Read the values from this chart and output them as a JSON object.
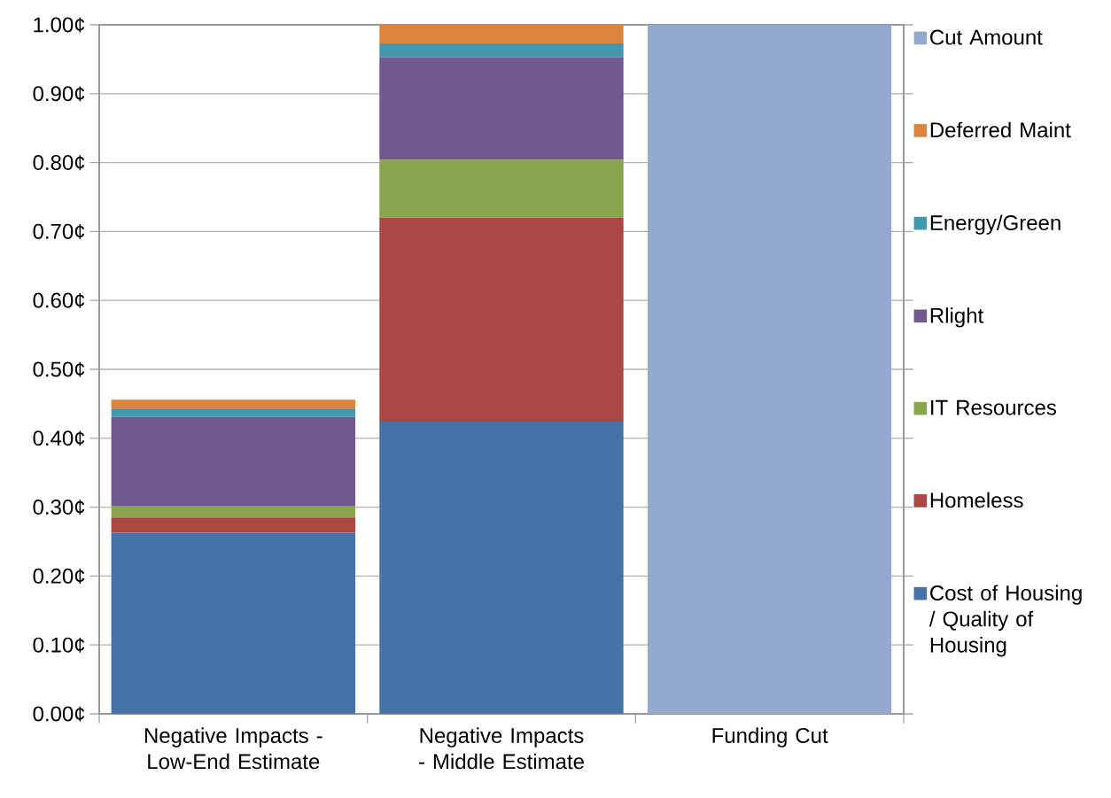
{
  "chart_data": {
    "type": "bar",
    "stacked": true,
    "categories": [
      "Negative Impacts - Low-End Estimate",
      "Negative Impacts - Middle Estimate",
      "Funding Cut"
    ],
    "series": [
      {
        "name": "Cost of Housing / Quality of Housing",
        "color": "#4572a7",
        "values": [
          0.263,
          0.424,
          0
        ]
      },
      {
        "name": "Homeless",
        "color": "#aa4643",
        "values": [
          0.022,
          0.296,
          0
        ]
      },
      {
        "name": "IT Resources",
        "color": "#89a54e",
        "values": [
          0.016,
          0.084,
          0
        ]
      },
      {
        "name": "Rlight",
        "color": "#71588f",
        "values": [
          0.13,
          0.149,
          0
        ]
      },
      {
        "name": "Energy/Green",
        "color": "#4198af",
        "values": [
          0.011,
          0.02,
          0
        ]
      },
      {
        "name": "Deferred Maint",
        "color": "#db843d",
        "values": [
          0.014,
          0.027,
          0
        ]
      },
      {
        "name": "Cut Amount",
        "color": "#93a9cf",
        "values": [
          0,
          0,
          1.0
        ]
      }
    ],
    "ylim": [
      0,
      1.0
    ],
    "yticks": [
      {
        "value": 0,
        "label": "0.00¢"
      },
      {
        "value": 0.1,
        "label": "0.10¢"
      },
      {
        "value": 0.2,
        "label": "0.20¢"
      },
      {
        "value": 0.3,
        "label": "0.30¢"
      },
      {
        "value": 0.4,
        "label": "0.40¢"
      },
      {
        "value": 0.5,
        "label": "0.50¢"
      },
      {
        "value": 0.6,
        "label": "0.60¢"
      },
      {
        "value": 0.7,
        "label": "0.70¢"
      },
      {
        "value": 0.8,
        "label": "0.80¢"
      },
      {
        "value": 0.9,
        "label": "0.90¢"
      },
      {
        "value": 1.0,
        "label": "1.00¢"
      }
    ],
    "grid": "y",
    "legend": "right"
  }
}
